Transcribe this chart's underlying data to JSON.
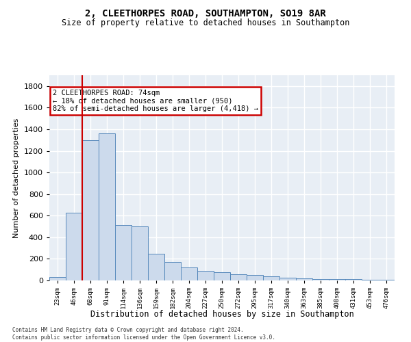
{
  "title": "2, CLEETHORPES ROAD, SOUTHAMPTON, SO19 8AR",
  "subtitle": "Size of property relative to detached houses in Southampton",
  "xlabel": "Distribution of detached houses by size in Southampton",
  "ylabel": "Number of detached properties",
  "bar_color": "#ccdaec",
  "bar_edge_color": "#5588bb",
  "categories": [
    "23sqm",
    "46sqm",
    "68sqm",
    "91sqm",
    "114sqm",
    "136sqm",
    "159sqm",
    "182sqm",
    "204sqm",
    "227sqm",
    "250sqm",
    "272sqm",
    "295sqm",
    "317sqm",
    "340sqm",
    "363sqm",
    "385sqm",
    "408sqm",
    "431sqm",
    "453sqm",
    "476sqm"
  ],
  "values": [
    30,
    630,
    1300,
    1360,
    510,
    500,
    250,
    170,
    120,
    90,
    75,
    60,
    50,
    40,
    25,
    20,
    15,
    15,
    10,
    5,
    5
  ],
  "ylim": [
    0,
    1900
  ],
  "yticks": [
    0,
    200,
    400,
    600,
    800,
    1000,
    1200,
    1400,
    1600,
    1800
  ],
  "red_line_x": 1.5,
  "annotation_text": "2 CLEETHORPES ROAD: 74sqm\n← 18% of detached houses are smaller (950)\n82% of semi-detached houses are larger (4,418) →",
  "annotation_box_color": "#ffffff",
  "annotation_box_edge": "#cc0000",
  "footer": "Contains HM Land Registry data © Crown copyright and database right 2024.\nContains public sector information licensed under the Open Government Licence v3.0.",
  "background_color": "#e8eef5",
  "grid_color": "#ffffff",
  "red_line_color": "#cc0000"
}
